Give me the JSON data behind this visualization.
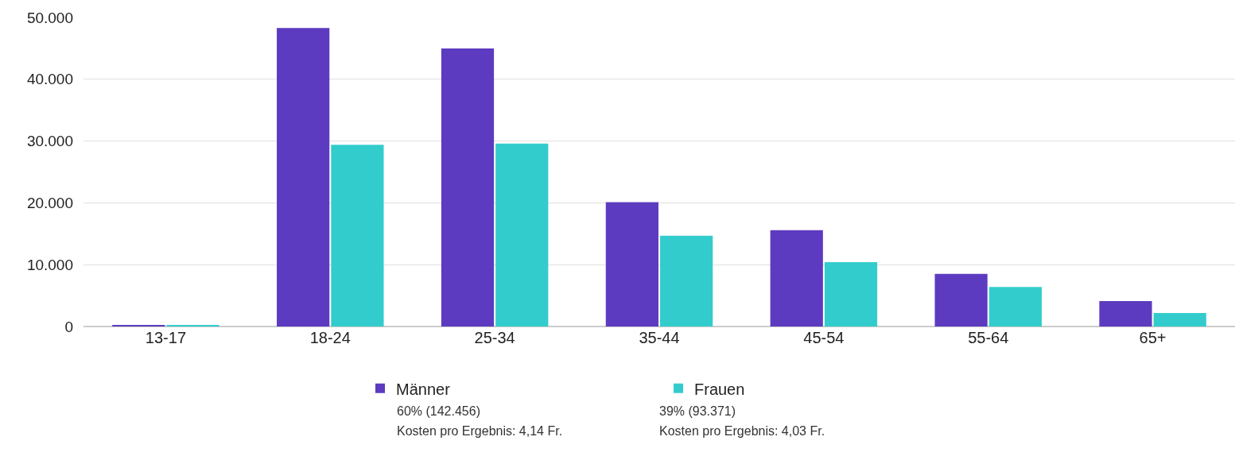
{
  "chart_data": {
    "type": "bar",
    "categories": [
      "13-17",
      "18-24",
      "25-34",
      "35-44",
      "45-54",
      "55-64",
      "65+"
    ],
    "series": [
      {
        "name": "Männer",
        "color": "#5c3bc0",
        "values": [
          200,
          48300,
          45000,
          20100,
          15600,
          8500,
          4100
        ]
      },
      {
        "name": "Frauen",
        "color": "#33cccc",
        "values": [
          200,
          29400,
          29600,
          14700,
          10400,
          6400,
          2200
        ]
      }
    ],
    "ylim": [
      0,
      50000
    ],
    "yticks": [
      0,
      {
        "value": 10000,
        "label": "10.000"
      },
      {
        "value": 20000,
        "label": "20.000"
      },
      {
        "value": 30000,
        "label": "30.000"
      },
      {
        "value": 40000,
        "label": "40.000"
      },
      {
        "value": 50000,
        "label": "50.000"
      }
    ],
    "grid": "y",
    "legend": "bottom",
    "annotations": [
      "60% (142.456)",
      "Kosten pro Ergebnis: 4,14 Fr.",
      "39% (93.371)",
      "Kosten pro Ergebnis: 4,03 Fr."
    ]
  }
}
